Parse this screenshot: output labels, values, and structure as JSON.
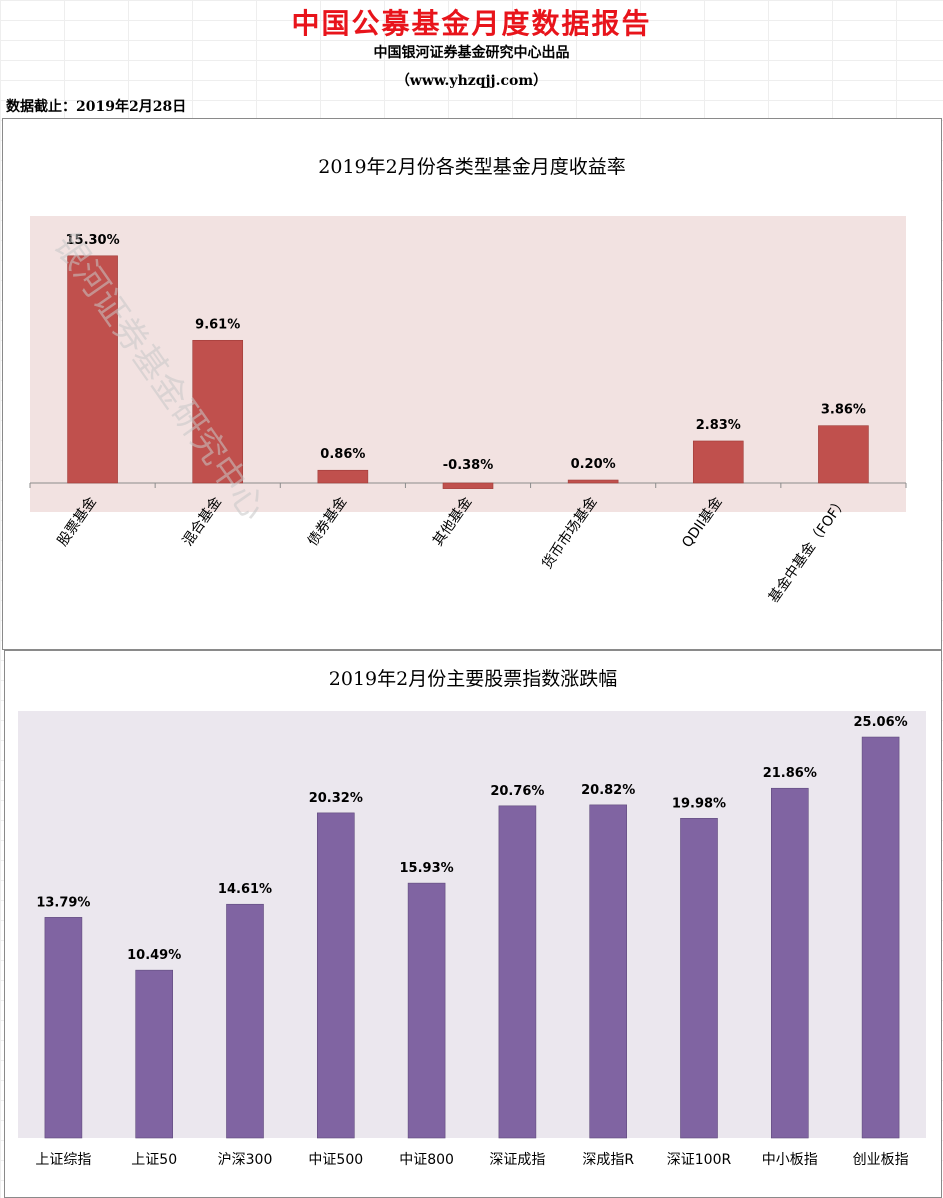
{
  "header": {
    "title": "中国公募基金月度数据报告",
    "subtitle": "中国银河证券基金研究中心出品",
    "website": "（www.yhzqjj.com）",
    "data_date": "数据截止：2019年2月28日"
  },
  "watermark": "银河证券基金研究中心",
  "colors": {
    "title_red": "#e8141b",
    "bar_red": "#c0504d",
    "plot_bg_pink": "#f2e2e1",
    "bar_purple": "#8064a2",
    "plot_bg_lavender": "#ebe7ee"
  },
  "chart_data": [
    {
      "type": "bar",
      "title": "2019年2月份各类型基金月度收益率",
      "categories": [
        "股票基金",
        "混合基金",
        "债券基金",
        "其他基金",
        "货币市场基金",
        "QDII基金",
        "基金中基金（FOF）"
      ],
      "values": [
        15.3,
        9.61,
        0.86,
        -0.38,
        0.2,
        2.83,
        3.86
      ],
      "labels": [
        "15.30%",
        "9.61%",
        "0.86%",
        "-0.38%",
        "0.20%",
        "2.83%",
        "3.86%"
      ],
      "unit": "%",
      "ylim": [
        -2,
        18
      ],
      "grid": false,
      "legend": "none"
    },
    {
      "type": "bar",
      "title": "2019年2月份主要股票指数涨跌幅",
      "categories": [
        "上证综指",
        "上证50",
        "沪深300",
        "中证500",
        "中证800",
        "深证成指",
        "深成指R",
        "深证100R",
        "中小板指",
        "创业板指"
      ],
      "values": [
        13.79,
        10.49,
        14.61,
        20.32,
        15.93,
        20.76,
        20.82,
        19.98,
        21.86,
        25.06
      ],
      "labels": [
        "13.79%",
        "10.49%",
        "14.61%",
        "20.32%",
        "15.93%",
        "20.76%",
        "20.82%",
        "19.98%",
        "21.86%",
        "25.06%"
      ],
      "unit": "%",
      "ylim": [
        0,
        28
      ],
      "grid": false,
      "legend": "none"
    }
  ]
}
